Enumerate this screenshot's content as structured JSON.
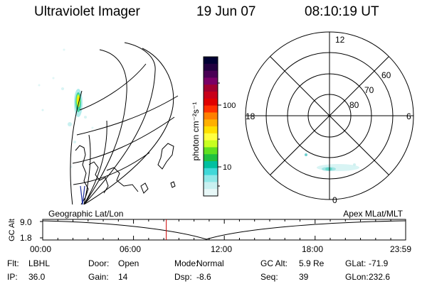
{
  "header": {
    "instrument": "Ultraviolet Imager",
    "date": "19 Jun 07",
    "time": "08:10:19 UT"
  },
  "colorbar": {
    "label": "photon cm⁻²s⁻¹",
    "ticks": [
      "100",
      "10"
    ],
    "colors": [
      "#000033",
      "#220040",
      "#4a0055",
      "#7a0066",
      "#a00030",
      "#c8001a",
      "#e00000",
      "#ff3000",
      "#ff8000",
      "#ffb000",
      "#ffe000",
      "#ffff40",
      "#c8ff20",
      "#60e020",
      "#20c040",
      "#00c0a0",
      "#40d8d8",
      "#90e8e8",
      "#c8f0f0",
      "#e8f8f8"
    ]
  },
  "polar": {
    "mlt_labels": {
      "top": "12",
      "left": "18",
      "right": "6",
      "bottom": "0"
    },
    "lat_labels": [
      "60",
      "70",
      "80"
    ]
  },
  "timeline": {
    "left_label": "Geographic Lat/Lon",
    "right_label": "Apex MLat/MLT",
    "yaxis_title": "GC Alt",
    "y_ticks": [
      "9.0",
      "1.8"
    ],
    "time_ticks": [
      "00:00",
      "06:00",
      "12:00",
      "18:00",
      "23:59"
    ],
    "current_time_marker": "08:10",
    "marker_color": "#cc0000"
  },
  "info": {
    "row1": [
      {
        "label": "Flt:",
        "value": "LBHL"
      },
      {
        "label": "Door:",
        "value": "Open"
      },
      {
        "label": "Mode:",
        "value": "Normal"
      },
      {
        "label": "GC Alt:",
        "value": "5.9 Re"
      },
      {
        "label": "GLat:",
        "value": "-71.9"
      }
    ],
    "row2": [
      {
        "label": "IP:",
        "value": "36.0"
      },
      {
        "label": "Gain:",
        "value": "14"
      },
      {
        "label": "Dsp:",
        "value": "-8.6"
      },
      {
        "label": "Seq:",
        "value": "39"
      },
      {
        "label": "GLon:",
        "value": "232.6"
      }
    ]
  }
}
